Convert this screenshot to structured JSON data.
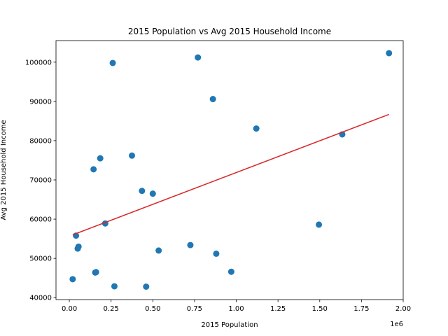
{
  "chart_data": {
    "type": "scatter",
    "title": "2015 Population vs Avg 2015 Household Income",
    "xlabel": "2015 Population",
    "ylabel": "Avg 2015 Household Income",
    "x_offset_label": "1e6",
    "xlim": [
      -80000,
      2000000
    ],
    "ylim": [
      39500,
      105500
    ],
    "x_ticks": [
      0,
      250000,
      500000,
      750000,
      1000000,
      1250000,
      1500000,
      1750000,
      2000000
    ],
    "x_tick_labels": [
      "0.00",
      "0.25",
      "0.50",
      "0.75",
      "1.00",
      "1.25",
      "1.50",
      "1.75",
      "2.00"
    ],
    "y_ticks": [
      40000,
      50000,
      60000,
      70000,
      80000,
      90000,
      100000
    ],
    "y_tick_labels": [
      "40000",
      "50000",
      "60000",
      "70000",
      "80000",
      "90000",
      "100000"
    ],
    "series": [
      {
        "name": "points",
        "color": "#1f77b4",
        "points": [
          {
            "x": 20000,
            "y": 44700
          },
          {
            "x": 40000,
            "y": 55800
          },
          {
            "x": 50000,
            "y": 52500
          },
          {
            "x": 55000,
            "y": 53000
          },
          {
            "x": 145000,
            "y": 72700
          },
          {
            "x": 155000,
            "y": 46400
          },
          {
            "x": 160000,
            "y": 46500
          },
          {
            "x": 185000,
            "y": 75500
          },
          {
            "x": 215000,
            "y": 58900
          },
          {
            "x": 260000,
            "y": 99800
          },
          {
            "x": 270000,
            "y": 42900
          },
          {
            "x": 375000,
            "y": 76200
          },
          {
            "x": 435000,
            "y": 67200
          },
          {
            "x": 460000,
            "y": 42800
          },
          {
            "x": 500000,
            "y": 66500
          },
          {
            "x": 535000,
            "y": 52000
          },
          {
            "x": 725000,
            "y": 53400
          },
          {
            "x": 770000,
            "y": 101200
          },
          {
            "x": 860000,
            "y": 90600
          },
          {
            "x": 880000,
            "y": 51200
          },
          {
            "x": 970000,
            "y": 46600
          },
          {
            "x": 1120000,
            "y": 83100
          },
          {
            "x": 1495000,
            "y": 58600
          },
          {
            "x": 1635000,
            "y": 81600
          },
          {
            "x": 1915000,
            "y": 102300
          }
        ]
      }
    ],
    "trendline": {
      "color": "#d62728",
      "x": [
        20000,
        1915000
      ],
      "y": [
        56000,
        86700
      ]
    }
  }
}
